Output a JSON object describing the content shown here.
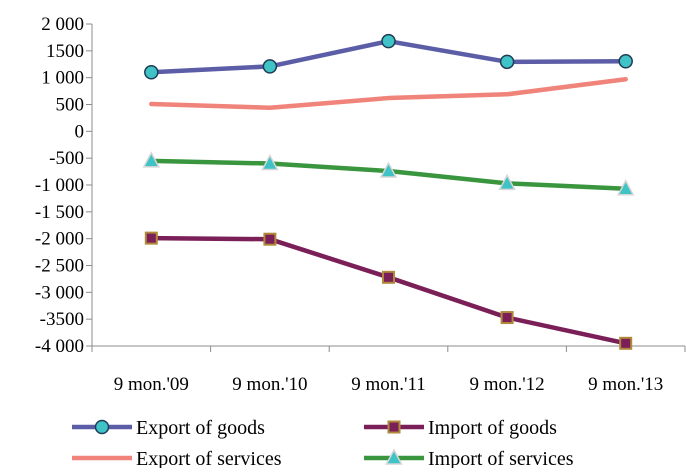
{
  "chart_data": {
    "type": "line",
    "categories": [
      "9 mon.'09",
      "9 mon.'10",
      "9 mon.'11",
      "9 mon.'12",
      "9 mon.'13"
    ],
    "ylim": [
      -4000,
      2000
    ],
    "yticks": [
      2000,
      1500,
      1000,
      500,
      0,
      -500,
      -1000,
      -1500,
      -2000,
      -2500,
      -3000,
      -3500,
      -4000
    ],
    "ytick_labels": [
      "2 000",
      "1500",
      "1 000",
      "500",
      "0",
      "-500",
      "-1 000",
      "-1 500",
      "-2 000",
      "-2 500",
      "-3 000",
      "-3500",
      "-4 000"
    ],
    "grid": false,
    "legend_position": "bottom",
    "series": [
      {
        "name": "Export of goods",
        "values": [
          1100,
          1210,
          1680,
          1295,
          1305
        ],
        "color": "#5B5EA6",
        "marker": "circle",
        "marker_fill": "#3FC3C6"
      },
      {
        "name": "Import of goods",
        "values": [
          -1990,
          -2010,
          -2720,
          -3470,
          -3950
        ],
        "color": "#7A1F58",
        "marker": "square",
        "marker_fill": "#7A1F58",
        "marker_stroke": "#B08A3A"
      },
      {
        "name": "Export of services",
        "values": [
          510,
          440,
          620,
          690,
          970
        ],
        "color": "#F0837A",
        "marker": "none"
      },
      {
        "name": "Import of services",
        "values": [
          -550,
          -600,
          -740,
          -970,
          -1070
        ],
        "color": "#3A963E",
        "marker": "triangle",
        "marker_fill": "#3FC3C6"
      }
    ]
  }
}
